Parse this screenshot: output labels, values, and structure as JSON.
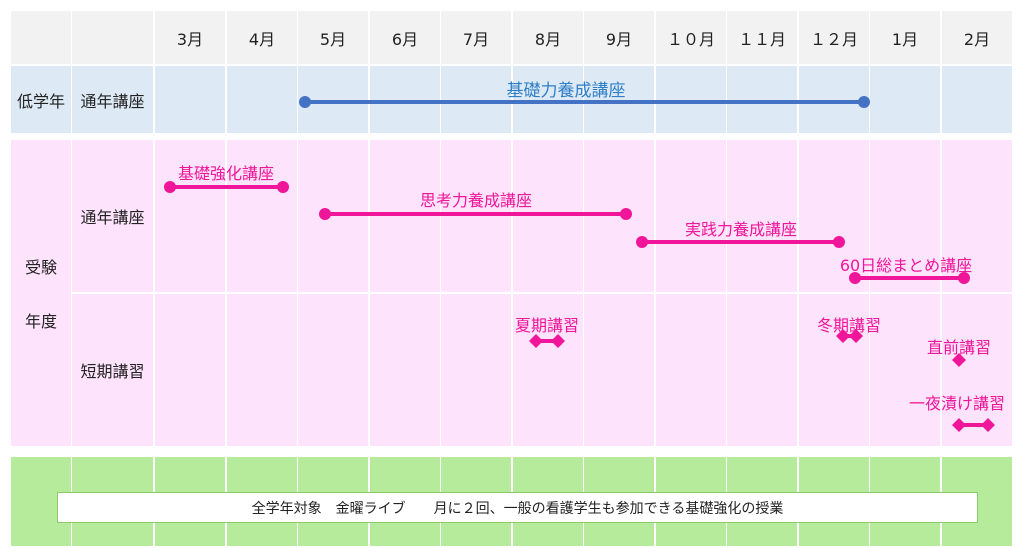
{
  "header": {
    "months": [
      "3月",
      "4月",
      "5月",
      "6月",
      "7月",
      "8月",
      "9月",
      "１０月",
      "１１月",
      "１２月",
      "1月",
      "2月"
    ]
  },
  "low_grade": {
    "group": "低学年",
    "category": "通年講座",
    "course": {
      "label": "基礎力養成講座",
      "color": "#4472c4"
    }
  },
  "exam_year": {
    "group_line1": "受験",
    "group_line2": "年度",
    "annual": {
      "category": "通年講座",
      "courses": [
        {
          "label": "基礎強化講座"
        },
        {
          "label": "思考力養成講座"
        },
        {
          "label": "実践力養成講座"
        },
        {
          "label": "60日総まとめ講座"
        }
      ]
    },
    "short": {
      "category": "短期講習",
      "courses": [
        {
          "label": "夏期講習"
        },
        {
          "label": "冬期講習"
        },
        {
          "label": "直前講習"
        },
        {
          "label": "一夜漬け講習"
        }
      ]
    },
    "color": "#f0169a"
  },
  "all_grades": {
    "note": "全学年対象　金曜ライブ　　月に２回、一般の看護学生も参加できる基礎強化の授業"
  }
}
